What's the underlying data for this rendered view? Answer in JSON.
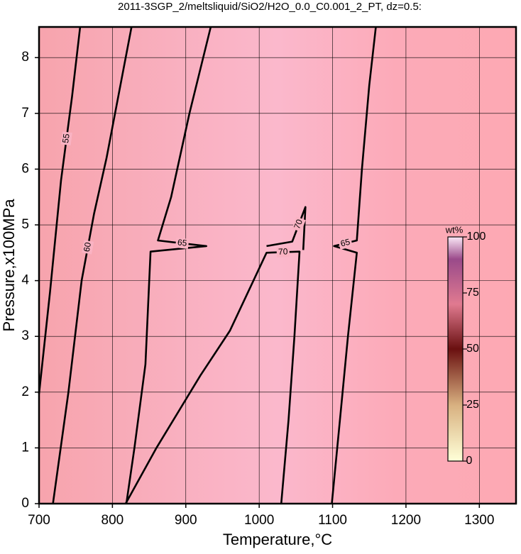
{
  "chart_data": {
    "type": "contour",
    "title": "2011-3SGP_2/meltsliquid/SiO2/H2O_0.0_C0.001_2_PT, dz=0.5:",
    "x_label": "Temperature,°C",
    "y_label": "Pressure,x100MPa",
    "xlim": [
      700,
      1350
    ],
    "xticks": [
      700,
      800,
      900,
      1000,
      1100,
      1200,
      1300
    ],
    "ylim": [
      0,
      8.55
    ],
    "yticks": [
      0,
      1,
      2,
      3,
      4,
      5,
      6,
      7,
      8
    ],
    "grid": true,
    "line_color": "#000000",
    "contours": [
      {
        "level": 55,
        "x": [
          700,
          715,
          730,
          745,
          756
        ],
        "y": [
          1.97,
          3.8,
          5.8,
          7.3,
          8.55
        ]
      },
      {
        "level": 60,
        "x": [
          719,
          740,
          758,
          775,
          792,
          826
        ],
        "y": [
          0,
          2,
          4,
          5.2,
          6.2,
          8.55
        ]
      },
      {
        "level": 65,
        "x": [
          819,
          830,
          845,
          852,
          928,
          862,
          880,
          905,
          934
        ],
        "y": [
          0,
          1,
          2.5,
          4.52,
          4.62,
          4.72,
          5.5,
          7,
          8.55
        ]
      },
      {
        "level": 65,
        "x": [
          1099,
          1110,
          1121,
          1133,
          1102,
          1133,
          1140,
          1150,
          1159
        ],
        "y": [
          0,
          1.5,
          3,
          4.5,
          4.62,
          4.72,
          6,
          7.5,
          8.55
        ]
      },
      {
        "level": 70,
        "x": [
          818,
          860,
          920,
          960,
          1010,
          1055,
          1048,
          1040,
          1030
        ],
        "y": [
          0,
          1,
          2.3,
          3.1,
          4.5,
          4.52,
          3,
          1.5,
          0
        ]
      },
      {
        "level": 70,
        "x": [
          1010,
          1045,
          1063,
          1060
        ],
        "y": [
          4.62,
          4.7,
          5.32,
          4.55
        ]
      }
    ],
    "colorbar": {
      "label": "wt%",
      "lim": [
        0,
        100
      ],
      "ticks": [
        0,
        25,
        50,
        75,
        100
      ]
    }
  }
}
